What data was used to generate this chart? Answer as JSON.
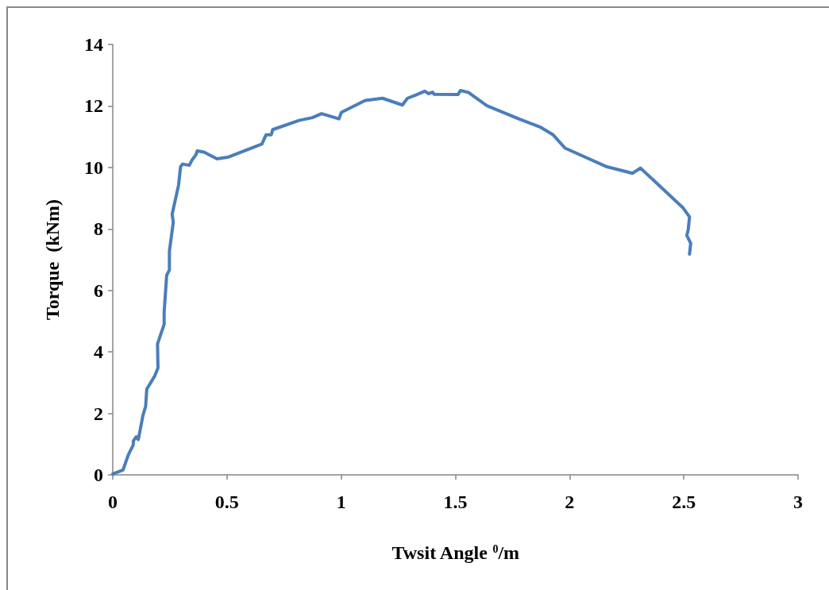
{
  "chart_data": {
    "type": "line",
    "xlabel": "Twsit Angle $^{0}$/m",
    "ylabel": "Torque  (kNm)",
    "x": [
      0,
      0.045,
      0.068,
      0.09,
      0.09,
      0.103,
      0.112,
      0.132,
      0.144,
      0.149,
      0.184,
      0.198,
      0.196,
      0.225,
      0.225,
      0.236,
      0.248,
      0.248,
      0.265,
      0.26,
      0.288,
      0.297,
      0.306,
      0.335,
      0.347,
      0.364,
      0.37,
      0.399,
      0.456,
      0.503,
      0.653,
      0.671,
      0.694,
      0.7,
      0.816,
      0.874,
      0.914,
      0.99,
      1.001,
      1.105,
      1.181,
      1.268,
      1.29,
      1.325,
      1.366,
      1.383,
      1.4,
      1.407,
      1.511,
      1.522,
      1.557,
      1.638,
      1.777,
      1.87,
      1.928,
      1.98,
      2.16,
      2.276,
      2.31,
      2.391,
      2.496,
      2.525,
      2.519,
      2.513,
      2.53,
      2.525
    ],
    "series": [
      {
        "color": "#4a7ebb",
        "values": [
          0.03,
          0.16,
          0.65,
          0.98,
          1.1,
          1.24,
          1.15,
          1.93,
          2.23,
          2.79,
          3.22,
          3.48,
          4.26,
          4.9,
          5.29,
          6.49,
          6.67,
          7.27,
          8.22,
          8.48,
          9.42,
          10.03,
          10.11,
          10.07,
          10.24,
          10.41,
          10.54,
          10.5,
          10.28,
          10.33,
          10.76,
          11.06,
          11.06,
          11.23,
          11.53,
          11.62,
          11.75,
          11.58,
          11.79,
          12.18,
          12.25,
          12.03,
          12.25,
          12.35,
          12.48,
          12.4,
          12.45,
          12.38,
          12.37,
          12.5,
          12.44,
          12.01,
          11.58,
          11.32,
          11.06,
          10.63,
          10.03,
          9.81,
          9.98,
          9.42,
          8.69,
          8.39,
          7.96,
          7.79,
          7.53,
          7.18
        ]
      }
    ],
    "xlim": [
      0,
      3
    ],
    "xticks": [
      0,
      0.5,
      1,
      1.5,
      2,
      2.5,
      3
    ],
    "ylim": [
      0,
      14
    ],
    "yticks": [
      0,
      2,
      4,
      6,
      8,
      10,
      12,
      14
    ],
    "grid": false,
    "marker": "none",
    "line_style": "solid"
  }
}
